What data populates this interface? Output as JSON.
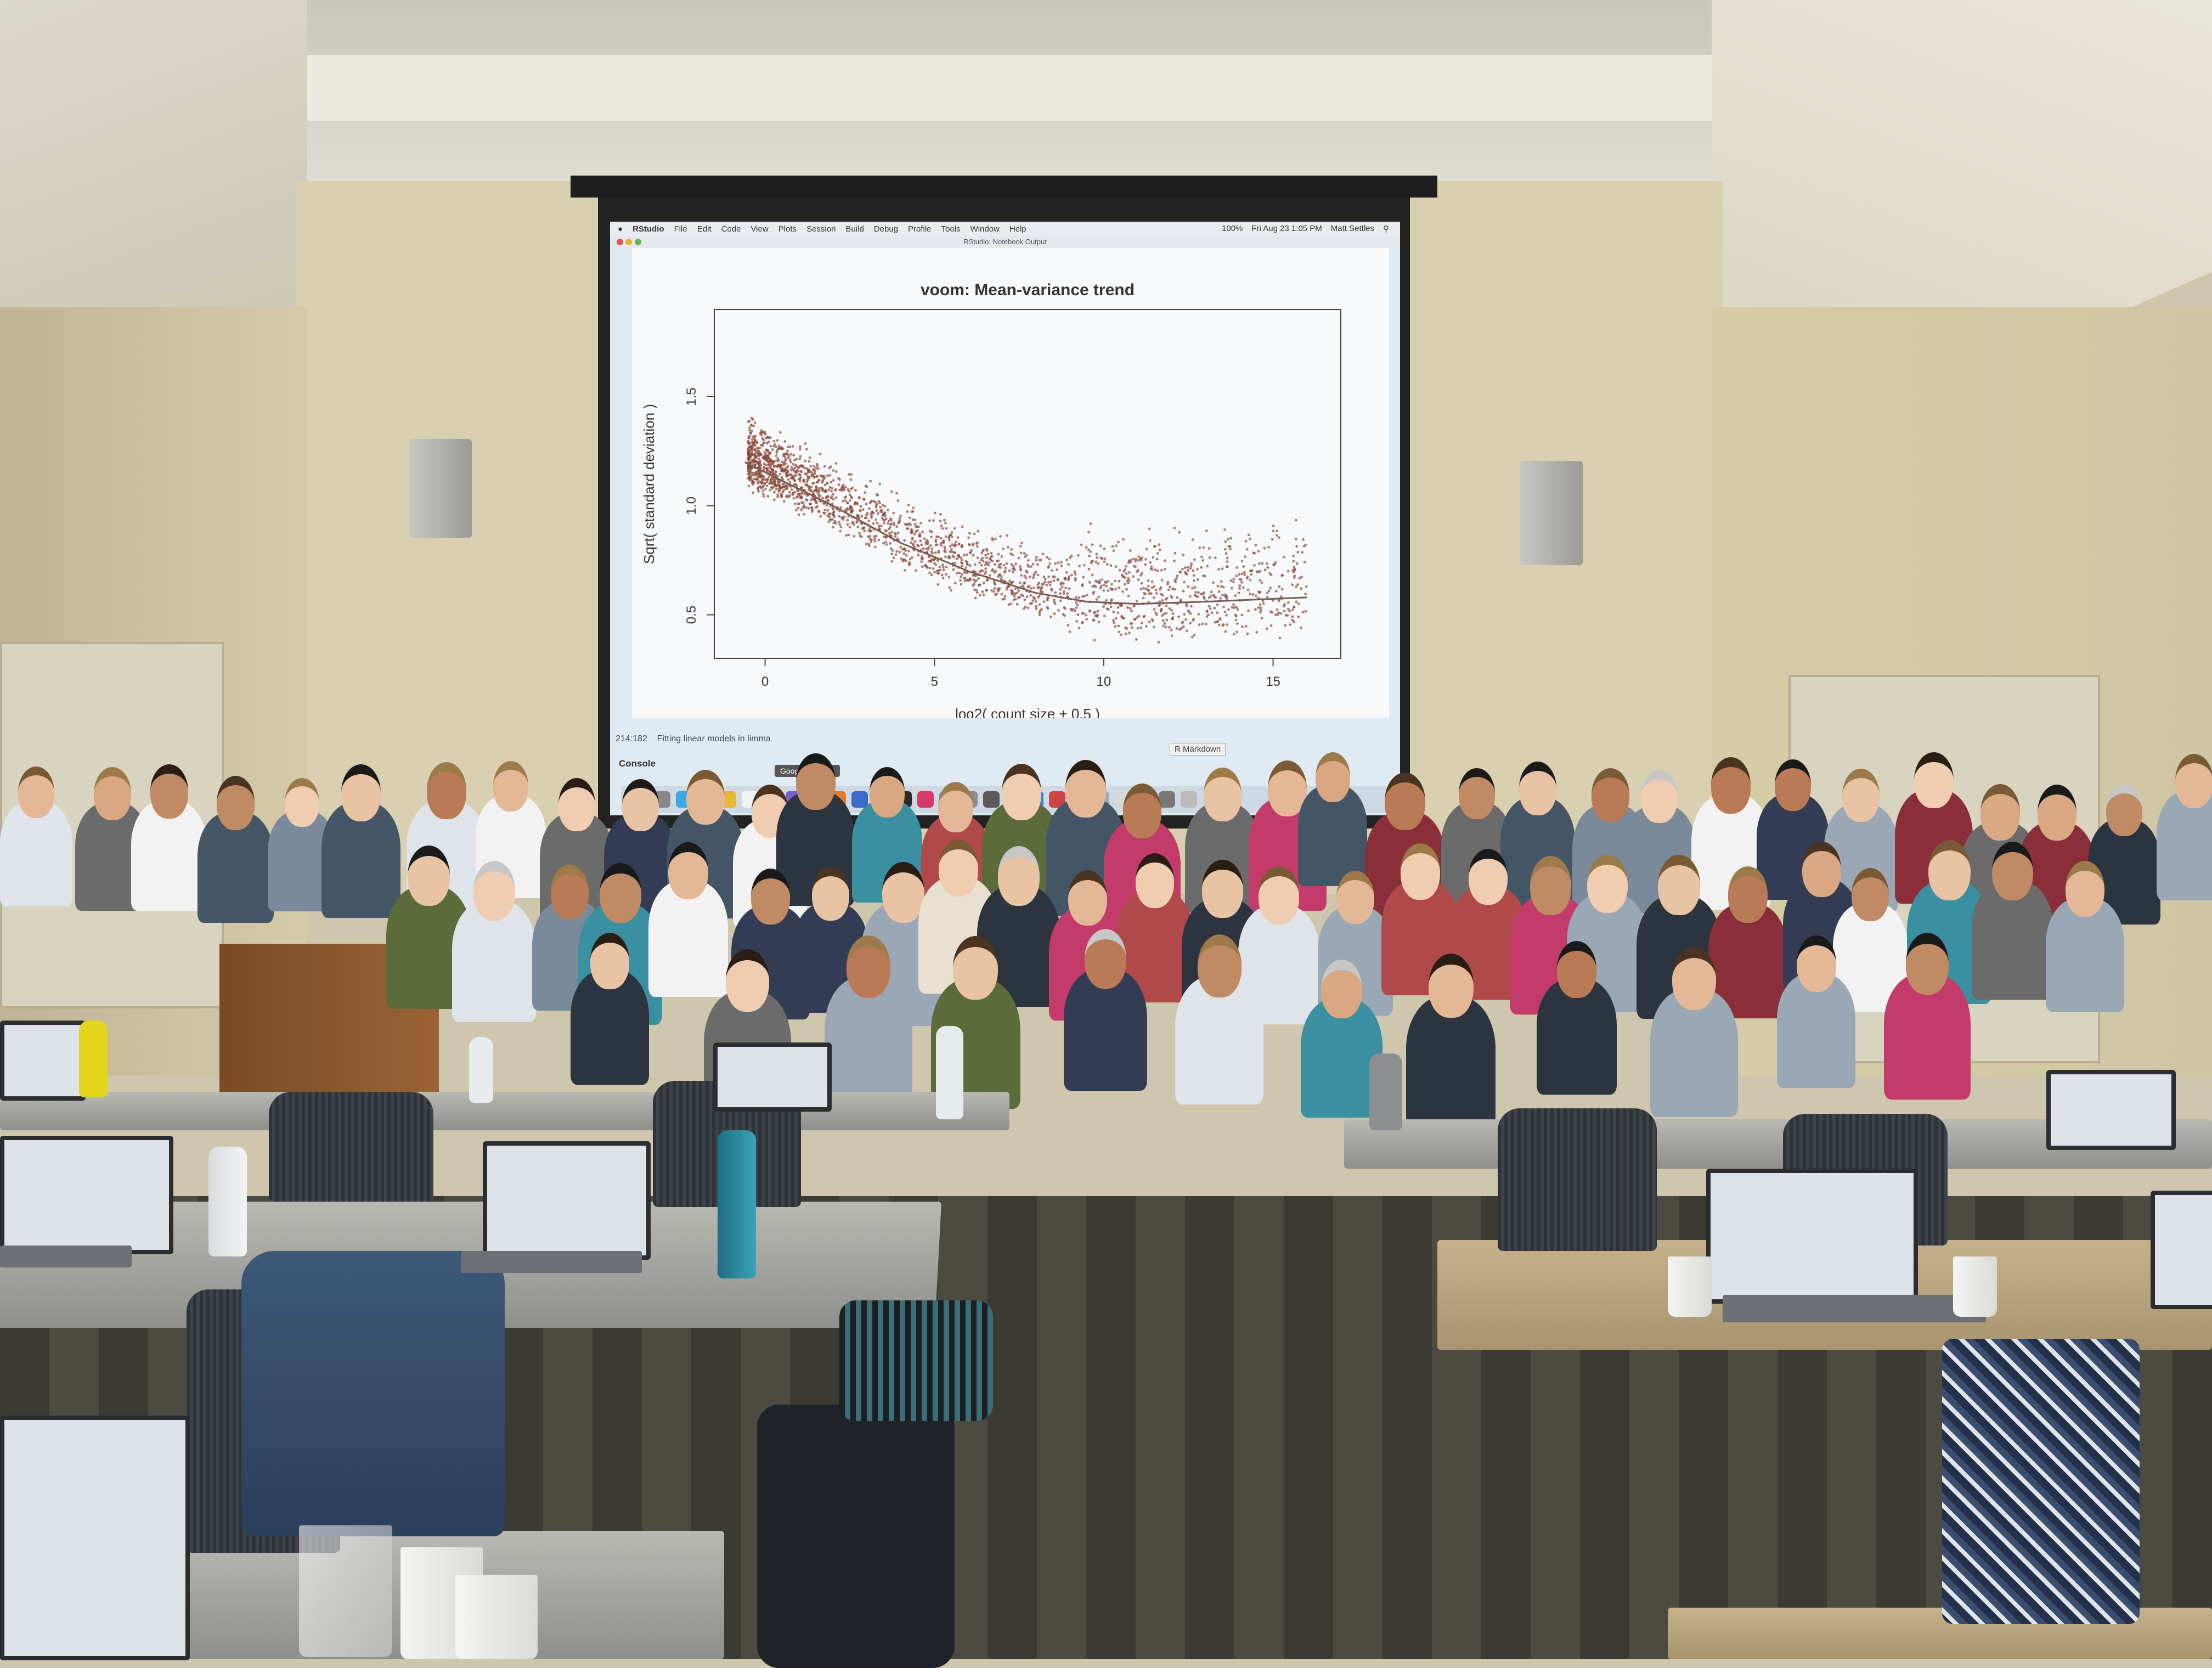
{
  "screen": {
    "menubar": {
      "app": "RStudio",
      "items": [
        "File",
        "Edit",
        "Code",
        "View",
        "Plots",
        "Session",
        "Build",
        "Debug",
        "Profile",
        "Tools",
        "Window",
        "Help"
      ],
      "battery": "100%",
      "datetime": "Fri Aug 23  1:05 PM",
      "user": "Matt Settles"
    },
    "window_title": "RStudio: Notebook Output",
    "status_position": "214:182",
    "status_section": "Fitting linear models in limma",
    "doc_type": "R Markdown",
    "console_label": "Console",
    "dock_tooltip": "Google Chrome"
  },
  "chart_data": {
    "type": "scatter",
    "title": "voom: Mean-variance trend",
    "xlabel": "log2( count size + 0.5 )",
    "ylabel": "Sqrt( standard deviation )",
    "xlim": [
      -1.5,
      17
    ],
    "ylim": [
      0.3,
      1.9
    ],
    "xticks": [
      "0",
      "5",
      "10",
      "15"
    ],
    "yticks": [
      "0.5",
      "1.0",
      "1.5"
    ],
    "point_color": "#8a4a3a",
    "trend": {
      "x": [
        -0.6,
        2,
        4,
        6,
        8,
        9.5,
        11,
        13,
        16
      ],
      "y": [
        1.2,
        1.0,
        0.83,
        0.7,
        0.6,
        0.56,
        0.55,
        0.56,
        0.58
      ]
    },
    "cloud": {
      "x_range": [
        -0.5,
        16
      ],
      "density_peak_x": 4,
      "spread_y": 0.12
    }
  },
  "colors": {
    "wall": "#d9d0b2",
    "screen_bg": "#dfeaf3",
    "carpet": "#44433a"
  },
  "icons": [
    "speaker-left",
    "speaker-right",
    "water-bottle-icon",
    "laptop-icon"
  ]
}
